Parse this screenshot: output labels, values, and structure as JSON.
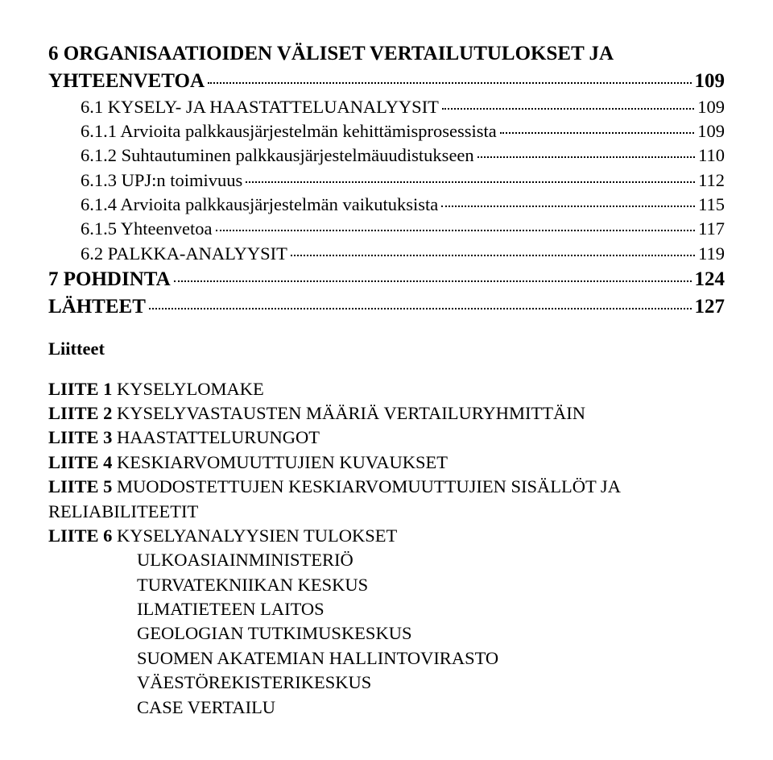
{
  "toc": [
    {
      "label": "6 ORGANISAATIOIDEN VÄLISET VERTAILUTULOKSET JA",
      "page": "",
      "bold": true,
      "size": "main",
      "leader": false,
      "indent": 0
    },
    {
      "label": "YHTEENVETOA",
      "page": "109",
      "bold": true,
      "size": "main",
      "leader": true,
      "indent": 0
    },
    {
      "label": "6.1 KYSELY- JA HAASTATTELUANALYYSIT",
      "page": "109",
      "bold": false,
      "size": "sub",
      "leader": true,
      "indent": 1
    },
    {
      "label": "6.1.1 Arvioita palkkausjärjestelmän kehittämisprosessista",
      "page": "109",
      "bold": false,
      "size": "sub",
      "leader": true,
      "indent": 1
    },
    {
      "label": "6.1.2 Suhtautuminen palkkausjärjestelmäuudistukseen",
      "page": "110",
      "bold": false,
      "size": "sub",
      "leader": true,
      "indent": 1
    },
    {
      "label": "6.1.3 UPJ:n toimivuus",
      "page": "112",
      "bold": false,
      "size": "sub",
      "leader": true,
      "indent": 1
    },
    {
      "label": "6.1.4 Arvioita palkkausjärjestelmän vaikutuksista",
      "page": "115",
      "bold": false,
      "size": "sub",
      "leader": true,
      "indent": 1
    },
    {
      "label": "6.1.5 Yhteenvetoa",
      "page": "117",
      "bold": false,
      "size": "sub",
      "leader": true,
      "indent": 1
    },
    {
      "label": "6.2 PALKKA-ANALYYSIT",
      "page": "119",
      "bold": false,
      "size": "sub",
      "leader": true,
      "indent": 1
    },
    {
      "label": "7 POHDINTA",
      "page": "124",
      "bold": true,
      "size": "main",
      "leader": true,
      "indent": 0
    },
    {
      "label": "LÄHTEET",
      "page": "127",
      "bold": true,
      "size": "main",
      "leader": true,
      "indent": 0
    }
  ],
  "liitteet_heading": "Liitteet",
  "liitteet": [
    {
      "text": "LIITE 1 KYSELYLOMAKE",
      "bold_prefix": "LIITE 1",
      "rest": " KYSELYLOMAKE",
      "indent": false
    },
    {
      "text": "LIITE 2 KYSELYVASTAUSTEN MÄÄRIÄ VERTAILURYHMITTÄIN",
      "bold_prefix": "LIITE 2",
      "rest": " KYSELYVASTAUSTEN MÄÄRIÄ VERTAILURYHMITTÄIN",
      "indent": false
    },
    {
      "text": "LIITE 3 HAASTATTELURUNGOT",
      "bold_prefix": "LIITE 3",
      "rest": " HAASTATTELURUNGOT",
      "indent": false
    },
    {
      "text": "LIITE 4 KESKIARVOMUUTTUJIEN KUVAUKSET",
      "bold_prefix": "LIITE 4",
      "rest": " KESKIARVOMUUTTUJIEN KUVAUKSET",
      "indent": false
    },
    {
      "text": "LIITE 5 MUODOSTETTUJEN KESKIARVOMUUTTUJIEN SISÄLLÖT JA",
      "bold_prefix": "LIITE 5",
      "rest": " MUODOSTETTUJEN KESKIARVOMUUTTUJIEN SISÄLLÖT JA",
      "indent": false
    },
    {
      "text": "RELIABILITEETIT",
      "bold_prefix": "",
      "rest": "RELIABILITEETIT",
      "indent": false
    },
    {
      "text": "LIITE 6 KYSELYANALYYSIEN TULOKSET",
      "bold_prefix": "LIITE 6",
      "rest": " KYSELYANALYYSIEN TULOKSET",
      "indent": false
    },
    {
      "text": "ULKOASIAINMINISTERIÖ",
      "bold_prefix": "",
      "rest": "ULKOASIAINMINISTERIÖ",
      "indent": true
    },
    {
      "text": "TURVATEKNIIKAN KESKUS",
      "bold_prefix": "",
      "rest": "TURVATEKNIIKAN KESKUS",
      "indent": true
    },
    {
      "text": "ILMATIETEEN LAITOS",
      "bold_prefix": "",
      "rest": "ILMATIETEEN LAITOS",
      "indent": true
    },
    {
      "text": "GEOLOGIAN TUTKIMUSKESKUS",
      "bold_prefix": "",
      "rest": "GEOLOGIAN TUTKIMUSKESKUS",
      "indent": true
    },
    {
      "text": "SUOMEN AKATEMIAN HALLINTOVIRASTO",
      "bold_prefix": "",
      "rest": "SUOMEN AKATEMIAN HALLINTOVIRASTO",
      "indent": true
    },
    {
      "text": "VÄESTÖREKISTERIKESKUS",
      "bold_prefix": "",
      "rest": "VÄESTÖREKISTERIKESKUS",
      "indent": true
    },
    {
      "text": "CASE VERTAILU",
      "bold_prefix": "",
      "rest": "CASE VERTAILU",
      "indent": true
    }
  ]
}
